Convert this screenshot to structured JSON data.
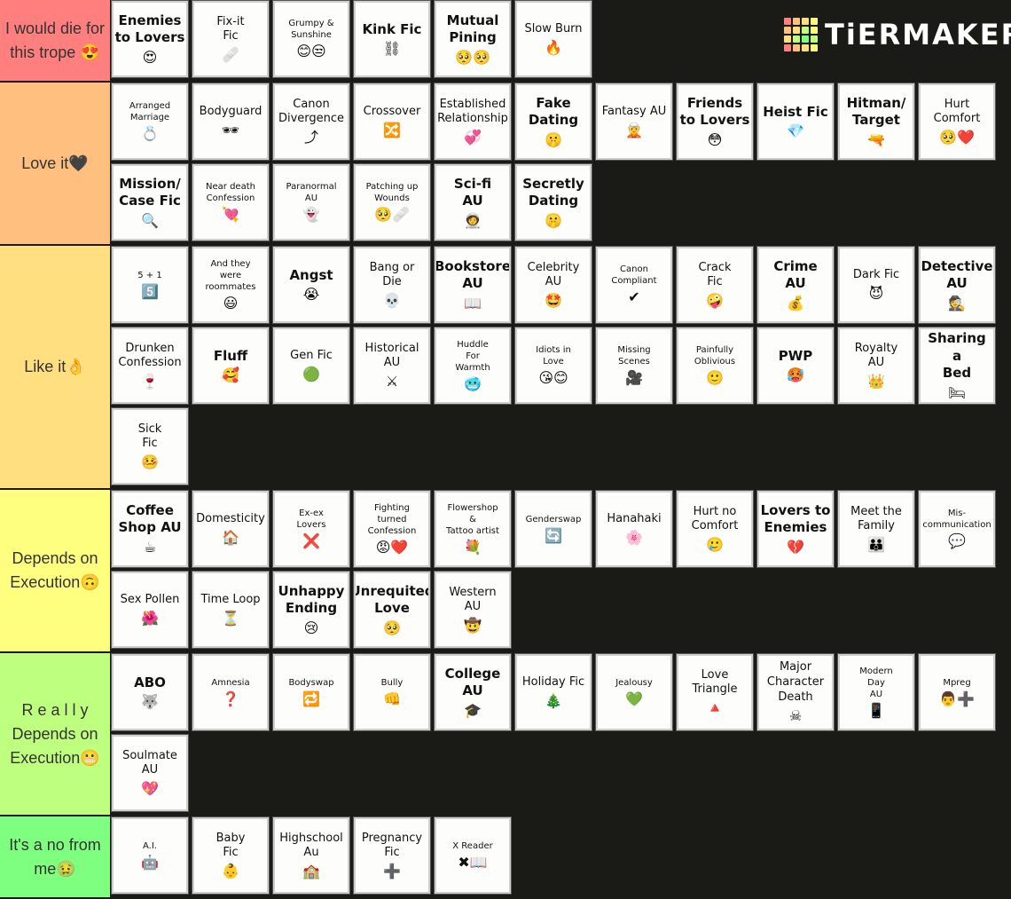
{
  "logo": {
    "text": "TiERMAKER",
    "grid_colors": [
      "#ff7f7f",
      "#ffbf7f",
      "#ffdf7f",
      "#ffff7f",
      "#ffbf7f",
      "#ffdf7f",
      "#bfff7f",
      "#ffff7f",
      "#ffdf7f",
      "#bfff7f",
      "#7fff7f",
      "#bfff7f",
      "#ff7f7f",
      "#ffbf7f",
      "#ffdf7f",
      "#ffff7f"
    ]
  },
  "tiers": [
    {
      "label": "I would die for this trope 😍",
      "color": "#ff7f7f",
      "items": [
        {
          "name": "Enemies\nto Lovers",
          "emoji": "😍",
          "size": "big"
        },
        {
          "name": "Fix-it\nFic",
          "emoji": "🩹",
          "size": "mid"
        },
        {
          "name": "Grumpy &\nSunshine",
          "emoji": "😊😒",
          "size": "small"
        },
        {
          "name": "Kink Fic",
          "emoji": "⛓",
          "size": "big"
        },
        {
          "name": "Mutual\nPining",
          "emoji": "🥺🥺",
          "size": "big"
        },
        {
          "name": "Slow Burn",
          "emoji": "🔥",
          "size": "mid"
        }
      ]
    },
    {
      "label": "Love it🖤",
      "color": "#ffbf7f",
      "items": [
        {
          "name": "Arranged\nMarriage",
          "emoji": "💍",
          "size": "small"
        },
        {
          "name": "Bodyguard",
          "emoji": "🕶",
          "size": "mid"
        },
        {
          "name": "Canon\nDivergence",
          "emoji": "⤴",
          "size": "mid"
        },
        {
          "name": "Crossover",
          "emoji": "🔀",
          "size": "mid"
        },
        {
          "name": "Established\nRelationship",
          "emoji": "💞",
          "size": "mid"
        },
        {
          "name": "Fake\nDating",
          "emoji": "🤫",
          "size": "big"
        },
        {
          "name": "Fantasy AU",
          "emoji": "🧝",
          "size": "mid"
        },
        {
          "name": "Friends\nto Lovers",
          "emoji": "😳",
          "size": "big"
        },
        {
          "name": "Heist Fic",
          "emoji": "💎",
          "size": "big"
        },
        {
          "name": "Hitman/\nTarget",
          "emoji": "🔫",
          "size": "big"
        },
        {
          "name": "Hurt\nComfort",
          "emoji": "🥺❤️",
          "size": "mid"
        },
        {
          "name": "Mission/\nCase Fic",
          "emoji": "🔍",
          "size": "big"
        },
        {
          "name": "Near death\nConfession",
          "emoji": "💘",
          "size": "small"
        },
        {
          "name": "Paranormal\nAU",
          "emoji": "👻",
          "size": "small"
        },
        {
          "name": "Patching up\nWounds",
          "emoji": "🥺🩹",
          "size": "small"
        },
        {
          "name": "Sci-fi\nAU",
          "emoji": "🧑‍🚀",
          "size": "big"
        },
        {
          "name": "Secretly\nDating",
          "emoji": "🤫",
          "size": "big"
        }
      ]
    },
    {
      "label": "Like it👌",
      "color": "#ffdf7f",
      "items": [
        {
          "name": "5 + 1",
          "emoji": "5️⃣",
          "size": "small"
        },
        {
          "name": "And they\nwere\nroommates",
          "emoji": "😃",
          "size": "small"
        },
        {
          "name": "Angst",
          "emoji": "😭",
          "size": "big"
        },
        {
          "name": "Bang or\nDie",
          "emoji": "💀",
          "size": "mid"
        },
        {
          "name": "Bookstore\nAU",
          "emoji": "📖",
          "size": "big"
        },
        {
          "name": "Celebrity\nAU",
          "emoji": "🤩",
          "size": "mid"
        },
        {
          "name": "Canon\nCompliant",
          "emoji": "✔",
          "size": "small"
        },
        {
          "name": "Crack\nFic",
          "emoji": "🤪",
          "size": "mid"
        },
        {
          "name": "Crime\nAU",
          "emoji": "💰",
          "size": "big"
        },
        {
          "name": "Dark Fic",
          "emoji": "😈",
          "size": "mid"
        },
        {
          "name": "Detective\nAU",
          "emoji": "🕵",
          "size": "big"
        },
        {
          "name": "Drunken\nConfession",
          "emoji": "🍷",
          "size": "mid"
        },
        {
          "name": "Fluff",
          "emoji": "🥰",
          "size": "big"
        },
        {
          "name": "Gen Fic",
          "emoji": "🟢",
          "size": "mid"
        },
        {
          "name": "Historical\nAU",
          "emoji": "⚔",
          "size": "mid"
        },
        {
          "name": "Huddle\nFor\nWarmth",
          "emoji": "🥶",
          "size": "small"
        },
        {
          "name": "Idiots in\nLove",
          "emoji": "😘😊",
          "size": "small"
        },
        {
          "name": "Missing\nScenes",
          "emoji": "🎥",
          "size": "small"
        },
        {
          "name": "Painfully\nOblivious",
          "emoji": "🙂",
          "size": "small"
        },
        {
          "name": "PWP",
          "emoji": "🥵",
          "size": "big"
        },
        {
          "name": "Royalty\nAU",
          "emoji": "👑",
          "size": "mid"
        },
        {
          "name": "Sharing a\nBed",
          "emoji": "🛏",
          "size": "big"
        },
        {
          "name": "Sick\nFic",
          "emoji": "🤒",
          "size": "mid"
        }
      ]
    },
    {
      "label": "Depends on Execution🙃",
      "color": "#ffff7f",
      "items": [
        {
          "name": "Coffee\nShop AU",
          "emoji": "☕",
          "size": "big"
        },
        {
          "name": "Domesticity",
          "emoji": "🏠",
          "size": "mid"
        },
        {
          "name": "Ex-ex\nLovers",
          "emoji": "❌",
          "size": "small"
        },
        {
          "name": "Fighting\nturned\nConfession",
          "emoji": "😡❤️",
          "size": "small"
        },
        {
          "name": "Flowershop\n&\nTattoo artist",
          "emoji": "💐",
          "size": "small"
        },
        {
          "name": "Genderswap",
          "emoji": "🔄",
          "size": "small"
        },
        {
          "name": "Hanahaki",
          "emoji": "🌸",
          "size": "mid"
        },
        {
          "name": "Hurt no\nComfort",
          "emoji": "🥲",
          "size": "mid"
        },
        {
          "name": "Lovers to\nEnemies",
          "emoji": "💔",
          "size": "big"
        },
        {
          "name": "Meet the\nFamily",
          "emoji": "👪",
          "size": "mid"
        },
        {
          "name": "Mis-\ncommunication",
          "emoji": "💬",
          "size": "small"
        },
        {
          "name": "Sex Pollen",
          "emoji": "🌺",
          "size": "mid"
        },
        {
          "name": "Time Loop",
          "emoji": "⏳",
          "size": "mid"
        },
        {
          "name": "Unhappy\nEnding",
          "emoji": "😢",
          "size": "big"
        },
        {
          "name": "Unrequited\nLove",
          "emoji": "🥺",
          "size": "big"
        },
        {
          "name": "Western\nAU",
          "emoji": "🤠",
          "size": "mid"
        }
      ]
    },
    {
      "label": "R e a l l y Depends on Execution😬",
      "color": "#bfff7f",
      "items": [
        {
          "name": "ABO",
          "emoji": "🐺",
          "size": "big"
        },
        {
          "name": "Amnesia",
          "emoji": "❓",
          "size": "small"
        },
        {
          "name": "Bodyswap",
          "emoji": "🔁",
          "size": "small"
        },
        {
          "name": "Bully",
          "emoji": "👊",
          "size": "small"
        },
        {
          "name": "College\nAU",
          "emoji": "🎓",
          "size": "big"
        },
        {
          "name": "Holiday Fic",
          "emoji": "🎄",
          "size": "mid"
        },
        {
          "name": "Jealousy",
          "emoji": "💚",
          "size": "small"
        },
        {
          "name": "Love\nTriangle",
          "emoji": "🔺",
          "size": "mid"
        },
        {
          "name": "Major\nCharacter\nDeath",
          "emoji": "☠",
          "size": "mid"
        },
        {
          "name": "Modern\nDay\nAU",
          "emoji": "📱",
          "size": "small"
        },
        {
          "name": "Mpreg",
          "emoji": "👨➕",
          "size": "small"
        },
        {
          "name": "Soulmate\nAU",
          "emoji": "💖",
          "size": "mid"
        }
      ]
    },
    {
      "label": "It's a no from me🤢",
      "color": "#7fff7f",
      "items": [
        {
          "name": "A.I.",
          "emoji": "🤖",
          "size": "small"
        },
        {
          "name": "Baby\nFic",
          "emoji": "👶",
          "size": "mid"
        },
        {
          "name": "Highschool\nAu",
          "emoji": "🏫",
          "size": "mid"
        },
        {
          "name": "Pregnancy\nFic",
          "emoji": "➕",
          "size": "mid"
        },
        {
          "name": "X Reader",
          "emoji": "✖📖",
          "size": "small"
        }
      ]
    }
  ]
}
